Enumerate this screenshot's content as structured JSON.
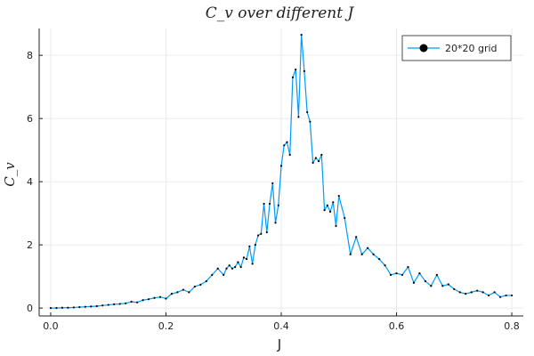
{
  "chart_data": {
    "type": "line",
    "title": "C_v over different J",
    "xlabel": "J",
    "ylabel": "C_v",
    "xlim": [
      -0.02,
      0.82
    ],
    "ylim": [
      -0.25,
      8.85
    ],
    "xticks": [
      0.0,
      0.2,
      0.4,
      0.6,
      0.8
    ],
    "xtick_labels": [
      "0.0",
      "0.2",
      "0.4",
      "0.6",
      "0.8"
    ],
    "yticks": [
      0,
      2,
      4,
      6,
      8
    ],
    "ytick_labels": [
      "0",
      "2",
      "4",
      "6",
      "8"
    ],
    "grid": true,
    "legend_position": "top-right",
    "colors": {
      "series": "#009AFA",
      "marker": "#000000",
      "axis": "#222222",
      "grid": "#EBEBEB"
    },
    "series": [
      {
        "name": "20*20 grid",
        "x": [
          0.0,
          0.01,
          0.02,
          0.03,
          0.04,
          0.05,
          0.06,
          0.07,
          0.08,
          0.09,
          0.1,
          0.11,
          0.12,
          0.13,
          0.14,
          0.15,
          0.16,
          0.17,
          0.18,
          0.19,
          0.2,
          0.21,
          0.22,
          0.23,
          0.24,
          0.25,
          0.26,
          0.27,
          0.28,
          0.29,
          0.3,
          0.305,
          0.31,
          0.315,
          0.32,
          0.325,
          0.33,
          0.335,
          0.34,
          0.345,
          0.35,
          0.355,
          0.36,
          0.365,
          0.37,
          0.375,
          0.38,
          0.385,
          0.39,
          0.395,
          0.4,
          0.405,
          0.41,
          0.415,
          0.42,
          0.425,
          0.43,
          0.435,
          0.44,
          0.445,
          0.45,
          0.455,
          0.46,
          0.465,
          0.47,
          0.475,
          0.48,
          0.485,
          0.49,
          0.495,
          0.5,
          0.51,
          0.52,
          0.53,
          0.54,
          0.55,
          0.56,
          0.57,
          0.58,
          0.59,
          0.6,
          0.61,
          0.62,
          0.63,
          0.64,
          0.65,
          0.66,
          0.67,
          0.68,
          0.69,
          0.7,
          0.71,
          0.72,
          0.73,
          0.74,
          0.75,
          0.76,
          0.77,
          0.78,
          0.79,
          0.8
        ],
        "y": [
          0.0,
          0.0,
          0.01,
          0.01,
          0.02,
          0.03,
          0.04,
          0.05,
          0.06,
          0.08,
          0.1,
          0.12,
          0.13,
          0.15,
          0.2,
          0.18,
          0.25,
          0.28,
          0.32,
          0.35,
          0.3,
          0.45,
          0.5,
          0.58,
          0.5,
          0.68,
          0.74,
          0.85,
          1.05,
          1.25,
          1.05,
          1.25,
          1.35,
          1.25,
          1.3,
          1.45,
          1.3,
          1.6,
          1.55,
          1.95,
          1.4,
          2.0,
          2.3,
          2.35,
          3.3,
          2.4,
          3.3,
          3.95,
          2.7,
          3.25,
          4.5,
          5.15,
          5.25,
          4.85,
          7.3,
          7.55,
          6.05,
          8.65,
          7.5,
          6.2,
          5.9,
          4.6,
          4.75,
          4.65,
          4.85,
          3.1,
          3.25,
          3.05,
          3.35,
          2.6,
          3.55,
          2.85,
          1.7,
          2.25,
          1.7,
          1.9,
          1.7,
          1.55,
          1.35,
          1.05,
          1.1,
          1.05,
          1.3,
          0.8,
          1.1,
          0.85,
          0.7,
          1.05,
          0.7,
          0.75,
          0.6,
          0.5,
          0.45,
          0.5,
          0.55,
          0.5,
          0.4,
          0.5,
          0.35,
          0.4,
          0.4
        ]
      }
    ]
  }
}
